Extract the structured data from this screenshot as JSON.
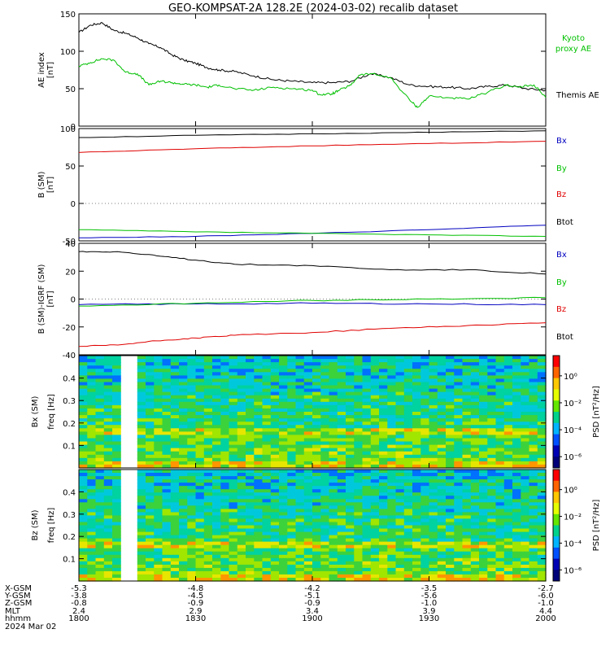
{
  "title": "GEO-KOMPSAT-2A 128.2E (2024-03-02) recalib dataset",
  "chart_data": [
    {
      "type": "line",
      "ylabel": "AE index\n[nT]",
      "ylim": [
        0,
        150
      ],
      "yticks": [
        "0",
        "50",
        "100",
        "150"
      ],
      "x_hhmm": [
        "1800",
        "1830",
        "1900",
        "1930",
        "2000"
      ],
      "series": [
        {
          "name": "Themis AE",
          "color": "#000000",
          "x": [
            0,
            3,
            6,
            9,
            12,
            15,
            18,
            21,
            24,
            27,
            30,
            33,
            36,
            40,
            45,
            50,
            55,
            60,
            65,
            70,
            75,
            80,
            85,
            90,
            95,
            100,
            105,
            110,
            115,
            120
          ],
          "values": [
            125,
            135,
            138,
            128,
            124,
            118,
            110,
            105,
            95,
            88,
            84,
            78,
            75,
            73,
            67,
            62,
            60,
            58,
            58,
            60,
            70,
            65,
            55,
            53,
            52,
            50,
            53,
            55,
            50,
            48
          ]
        },
        {
          "name": "Kyoto proxy AE",
          "color": "#00c000",
          "x": [
            0,
            3,
            6,
            9,
            12,
            15,
            18,
            21,
            24,
            27,
            30,
            33,
            36,
            40,
            45,
            50,
            55,
            60,
            62,
            65,
            67,
            70,
            72,
            75,
            80,
            85,
            87,
            90,
            95,
            100,
            105,
            110,
            113,
            117,
            120
          ],
          "values": [
            80,
            85,
            90,
            88,
            72,
            70,
            55,
            60,
            58,
            56,
            55,
            52,
            55,
            50,
            48,
            52,
            50,
            48,
            42,
            43,
            48,
            55,
            68,
            70,
            65,
            35,
            25,
            40,
            38,
            36,
            45,
            55,
            52,
            55,
            38
          ]
        }
      ]
    },
    {
      "type": "line",
      "ylabel": "B (SM)\n[nT]",
      "ylim": [
        -50,
        100
      ],
      "yticks": [
        "-50",
        "0",
        "50",
        "100"
      ],
      "series": [
        {
          "name": "Bx",
          "color": "#0000c0",
          "x": [
            0,
            30,
            60,
            90,
            120
          ],
          "values": [
            -46,
            -44,
            -40,
            -35,
            -29
          ]
        },
        {
          "name": "By",
          "color": "#00c000",
          "x": [
            0,
            30,
            60,
            90,
            120
          ],
          "values": [
            -35,
            -38,
            -40,
            -42,
            -44
          ]
        },
        {
          "name": "Bz",
          "color": "#e00000",
          "x": [
            0,
            30,
            60,
            90,
            120
          ],
          "values": [
            68,
            73,
            77,
            80,
            83
          ]
        },
        {
          "name": "Btot",
          "color": "#000000",
          "x": [
            0,
            30,
            60,
            90,
            120
          ],
          "values": [
            88,
            91,
            93,
            95,
            97
          ]
        }
      ]
    },
    {
      "type": "line",
      "ylabel": "B (SM)-IGRF (SM)\n[nT]",
      "ylim": [
        -40,
        40
      ],
      "yticks": [
        "-40",
        "-20",
        "0",
        "20",
        "40"
      ],
      "series": [
        {
          "name": "Bx",
          "color": "#0000c0",
          "x": [
            0,
            30,
            60,
            90,
            120
          ],
          "values": [
            -4,
            -3.5,
            -3,
            -3.5,
            -4
          ]
        },
        {
          "name": "By",
          "color": "#00c000",
          "x": [
            0,
            30,
            60,
            90,
            120
          ],
          "values": [
            -5,
            -3,
            -1,
            0,
            1
          ]
        },
        {
          "name": "Bz",
          "color": "#e00000",
          "x": [
            0,
            10,
            20,
            30,
            40,
            60,
            80,
            100,
            120
          ],
          "values": [
            -34,
            -33,
            -30,
            -28,
            -26,
            -24,
            -21,
            -19,
            -17
          ]
        },
        {
          "name": "Btot",
          "color": "#000000",
          "x": [
            0,
            10,
            20,
            30,
            40,
            60,
            80,
            100,
            120
          ],
          "values": [
            34,
            34,
            31,
            28,
            25,
            24,
            21,
            21,
            18
          ]
        }
      ]
    },
    {
      "type": "heatmap",
      "ylabel": "Bx (SM)\nfreq [Hz]",
      "yticks": [
        "0.1",
        "0.2",
        "0.3",
        "0.4"
      ],
      "colorbar_label": "PSD [nT²/Hz]",
      "colorbar_ticks": [
        "10⁰",
        "10⁻²",
        "10⁻⁴",
        "10⁻⁶"
      ],
      "data_gap_minutes": [
        11,
        15
      ]
    },
    {
      "type": "heatmap",
      "ylabel": "Bz (SM)\nfreq [Hz]",
      "yticks": [
        "0.1",
        "0.2",
        "0.3",
        "0.4"
      ],
      "colorbar_label": "PSD [nT²/Hz]",
      "colorbar_ticks": [
        "10⁰",
        "10⁻²",
        "10⁻⁴",
        "10⁻⁶"
      ],
      "data_gap_minutes": [
        11,
        15
      ]
    }
  ],
  "orbit_table": {
    "row_labels": [
      "X-GSM",
      "Y-GSM",
      "Z-GSM",
      "MLT",
      "hhmm",
      "2024 Mar 02"
    ],
    "columns": [
      [
        "-5.3",
        "-3.8",
        "-0.8",
        "2.4",
        "1800"
      ],
      [
        "-4.8",
        "-4.5",
        "-0.9",
        "2.9",
        "1830"
      ],
      [
        "-4.2",
        "-5.1",
        "-0.9",
        "3.4",
        "1900"
      ],
      [
        "-3.5",
        "-5.6",
        "-1.0",
        "3.9",
        "1930"
      ],
      [
        "-2.7",
        "-6.0",
        "-1.0",
        "4.4",
        "2000"
      ]
    ]
  }
}
